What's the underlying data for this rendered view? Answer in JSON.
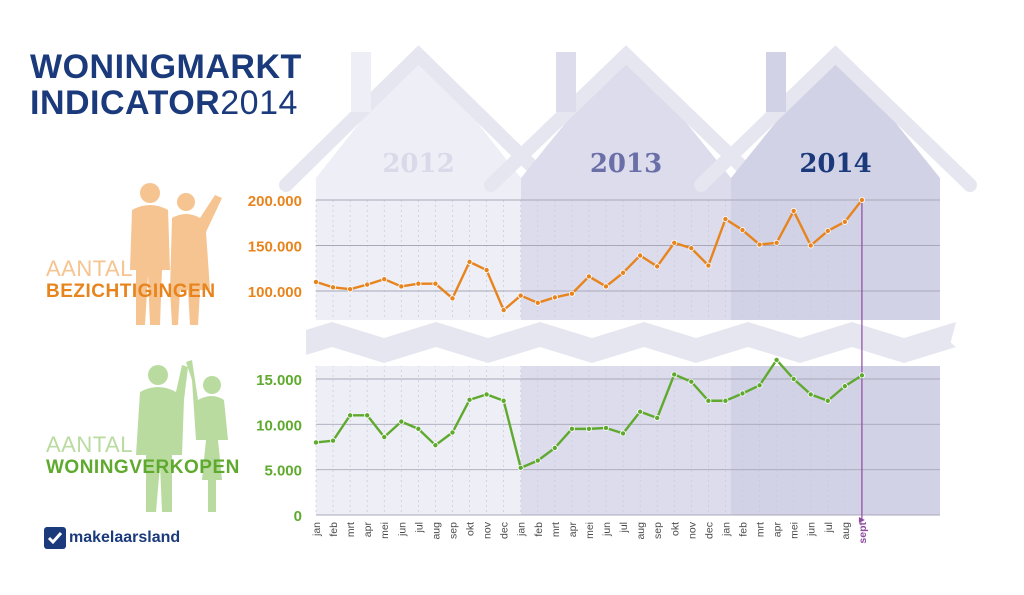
{
  "title": {
    "line1": "WONINGMARKT",
    "line2_bold": "INDICATOR",
    "line2_year": "2014"
  },
  "labels": {
    "viewings_top": "AANTAL",
    "viewings_bottom": "BEZICHTIGINGEN",
    "sales_top": "AANTAL",
    "sales_bottom": "WONINGVERKOPEN"
  },
  "logo": {
    "text": "makelaarsland"
  },
  "years": [
    "2012",
    "2013",
    "2014"
  ],
  "colors": {
    "orange": "#e8841d",
    "green": "#5faa2e",
    "navy": "#1a3a7c",
    "house": "#d9d9ea",
    "purple": "#8e4aa0"
  },
  "chart_data": [
    {
      "type": "line",
      "series": [
        {
          "name": "AANTAL BEZICHTIGINGEN",
          "color": "#e8841d",
          "values": [
            110000,
            104000,
            102000,
            107000,
            113000,
            105000,
            108000,
            108000,
            92000,
            132000,
            123000,
            79000,
            95000,
            87000,
            93000,
            97000,
            116000,
            105000,
            120000,
            139000,
            127000,
            153000,
            147000,
            128000,
            179000,
            167000,
            151000,
            153000,
            188000,
            150000,
            166000,
            176000,
            200000
          ]
        }
      ],
      "ylim": [
        85000,
        210000
      ],
      "ticks": [
        {
          "value": 200000,
          "label": "200.000"
        },
        {
          "value": 150000,
          "label": "150.000"
        },
        {
          "value": 100000,
          "label": "100.000"
        }
      ]
    },
    {
      "type": "line",
      "series": [
        {
          "name": "AANTAL WONINGVERKOPEN",
          "color": "#5faa2e",
          "values": [
            8000,
            8200,
            11000,
            11000,
            8600,
            10300,
            9500,
            7700,
            9100,
            12700,
            13300,
            12600,
            5200,
            6000,
            7400,
            9500,
            9500,
            9600,
            9000,
            11400,
            10700,
            15500,
            14700,
            12600,
            12600,
            13400,
            14300,
            17100,
            15000,
            13300,
            12600,
            14200,
            15400
          ]
        }
      ],
      "ylim": [
        0,
        17500
      ],
      "ticks": [
        {
          "value": 15000,
          "label": "15.000"
        },
        {
          "value": 10000,
          "label": "10.000"
        },
        {
          "value": 5000,
          "label": "5.000"
        },
        {
          "value": 0,
          "label": "0"
        }
      ]
    }
  ],
  "months": [
    "jan",
    "feb",
    "mrt",
    "apr",
    "mei",
    "jun",
    "jul",
    "aug",
    "sep",
    "okt",
    "nov",
    "dec",
    "jan",
    "feb",
    "mrt",
    "apr",
    "mei",
    "jun",
    "jul",
    "aug",
    "sep",
    "okt",
    "nov",
    "dec",
    "jan",
    "feb",
    "mrt",
    "apr",
    "mei",
    "jun",
    "jul",
    "aug",
    "sept"
  ]
}
